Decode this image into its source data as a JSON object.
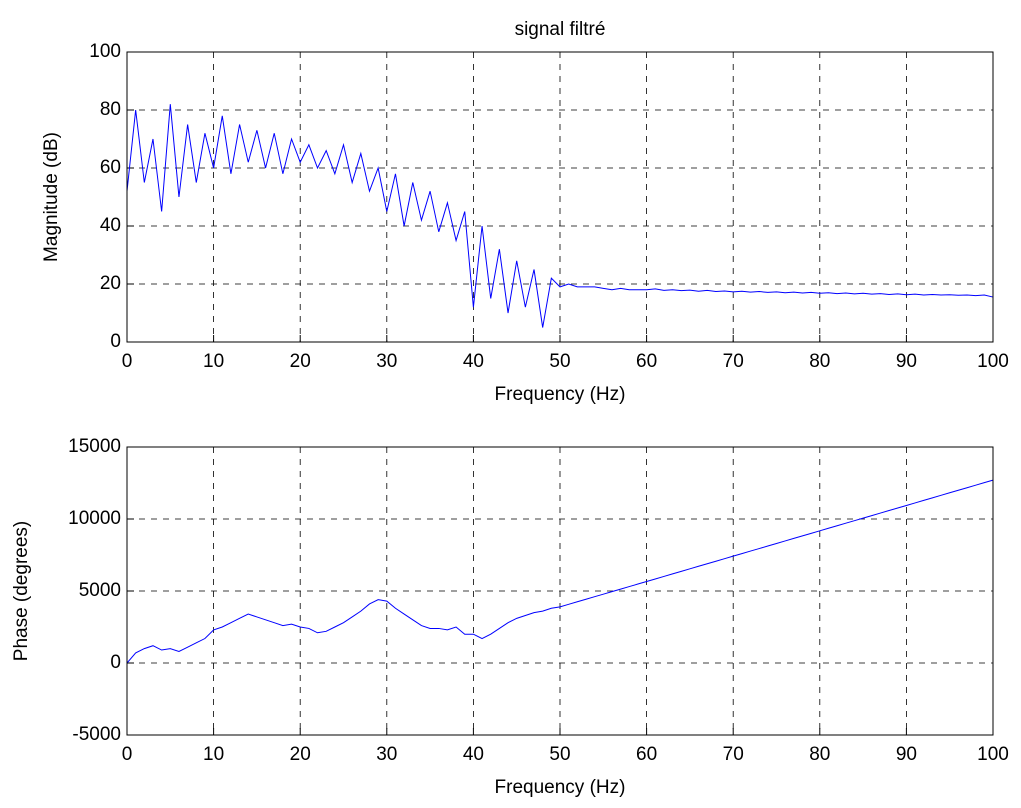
{
  "chart_data": [
    {
      "type": "line",
      "title": "signal filtré",
      "x_label": "Frequency (Hz)",
      "y_label": "Magnitude (dB)",
      "grid": true,
      "xlim": [
        0,
        100
      ],
      "xticks": [
        0,
        10,
        20,
        30,
        40,
        50,
        60,
        70,
        80,
        90,
        100
      ],
      "ylim": [
        0,
        100
      ],
      "yticks": [
        0,
        20,
        40,
        60,
        80,
        100
      ],
      "x": [
        0,
        1,
        2,
        3,
        4,
        5,
        6,
        7,
        8,
        9,
        10,
        11,
        12,
        13,
        14,
        15,
        16,
        17,
        18,
        19,
        20,
        21,
        22,
        23,
        24,
        25,
        26,
        27,
        28,
        29,
        30,
        31,
        32,
        33,
        34,
        35,
        36,
        37,
        38,
        39,
        40,
        41,
        42,
        43,
        44,
        45,
        46,
        47,
        48,
        49,
        50,
        51,
        52,
        53,
        54,
        55,
        56,
        57,
        58,
        59,
        60,
        61,
        62,
        63,
        64,
        65,
        66,
        67,
        68,
        69,
        70,
        71,
        72,
        73,
        74,
        75,
        76,
        77,
        78,
        79,
        80,
        81,
        82,
        83,
        84,
        85,
        86,
        87,
        88,
        89,
        90,
        91,
        92,
        93,
        94,
        95,
        96,
        97,
        98,
        99,
        100
      ],
      "series": [
        {
          "color": "#0000ff",
          "values": [
            52,
            80,
            55,
            70,
            45,
            82,
            50,
            75,
            55,
            72,
            60,
            78,
            58,
            75,
            62,
            73,
            60,
            72,
            58,
            70,
            62,
            68,
            60,
            66,
            58,
            68,
            55,
            65,
            52,
            60,
            45,
            58,
            40,
            55,
            42,
            52,
            38,
            48,
            35,
            45,
            12,
            40,
            15,
            32,
            10,
            28,
            12,
            25,
            5,
            22,
            19,
            20,
            19,
            19,
            19,
            18.5,
            18,
            18.5,
            18,
            18,
            18,
            18.3,
            17.8,
            18,
            17.7,
            17.9,
            17.5,
            17.8,
            17.4,
            17.6,
            17.3,
            17.5,
            17.2,
            17.4,
            17.1,
            17.3,
            17,
            17.2,
            16.9,
            17.1,
            16.8,
            17,
            16.7,
            16.9,
            16.6,
            16.8,
            16.5,
            16.7,
            16.4,
            16.6,
            16.3,
            16.5,
            16.2,
            16.4,
            16.2,
            16.3,
            16.1,
            16.2,
            16,
            16.2,
            15.5
          ]
        }
      ]
    },
    {
      "type": "line",
      "x_label": "Frequency (Hz)",
      "y_label": "Phase (degrees)",
      "grid": true,
      "xlim": [
        0,
        100
      ],
      "xticks": [
        0,
        10,
        20,
        30,
        40,
        50,
        60,
        70,
        80,
        90,
        100
      ],
      "ylim": [
        -5000,
        15000
      ],
      "yticks": [
        -5000,
        0,
        5000,
        10000,
        15000
      ],
      "x": [
        0,
        1,
        2,
        3,
        4,
        5,
        6,
        7,
        8,
        9,
        10,
        11,
        12,
        13,
        14,
        15,
        16,
        17,
        18,
        19,
        20,
        21,
        22,
        23,
        24,
        25,
        26,
        27,
        28,
        29,
        30,
        31,
        32,
        33,
        34,
        35,
        36,
        37,
        38,
        39,
        40,
        41,
        42,
        43,
        44,
        45,
        46,
        47,
        48,
        49,
        50,
        51,
        52,
        53,
        54,
        55,
        56,
        57,
        58,
        59,
        60,
        61,
        62,
        63,
        64,
        65,
        66,
        67,
        68,
        69,
        70,
        71,
        72,
        73,
        74,
        75,
        76,
        77,
        78,
        79,
        80,
        81,
        82,
        83,
        84,
        85,
        86,
        87,
        88,
        89,
        90,
        91,
        92,
        93,
        94,
        95,
        96,
        97,
        98,
        99,
        100
      ],
      "series": [
        {
          "color": "#0000ff",
          "values": [
            0,
            700,
            1000,
            1200,
            900,
            1000,
            800,
            1100,
            1400,
            1700,
            2300,
            2500,
            2800,
            3100,
            3400,
            3200,
            3000,
            2800,
            2600,
            2700,
            2500,
            2400,
            2100,
            2200,
            2500,
            2800,
            3200,
            3600,
            4100,
            4400,
            4300,
            3800,
            3400,
            3000,
            2600,
            2400,
            2400,
            2300,
            2500,
            2000,
            2000,
            1700,
            2000,
            2400,
            2800,
            3100,
            3300,
            3500,
            3600,
            3800,
            3900,
            4076,
            4252,
            4428,
            4604,
            4780,
            4956,
            5132,
            5308,
            5484,
            5660,
            5836,
            6012,
            6188,
            6364,
            6540,
            6716,
            6892,
            7068,
            7244,
            7420,
            7596,
            7772,
            7948,
            8124,
            8300,
            8476,
            8652,
            8828,
            9004,
            9180,
            9356,
            9532,
            9708,
            9884,
            10060,
            10236,
            10412,
            10588,
            10764,
            10940,
            11116,
            11292,
            11468,
            11644,
            11820,
            11996,
            12172,
            12348,
            12524,
            12700
          ]
        }
      ]
    }
  ]
}
